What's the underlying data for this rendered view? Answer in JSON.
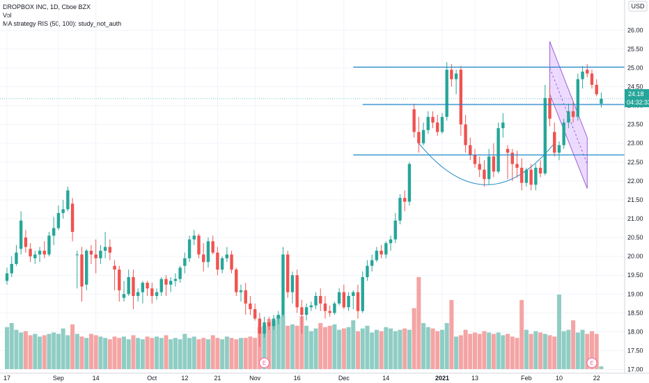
{
  "legend": {
    "symbol_line": "DROPBOX INC, 1D, Cboe BZX",
    "vol_line": "Vol",
    "strategy_line": "MA strategy RIS (50, 100): study_not_auth"
  },
  "currency_label": "USD",
  "price_label": "24.18",
  "countdown_label": "04:32:33",
  "earnings_marker": "E",
  "colors": {
    "up": "#26a69a",
    "down": "#ef5350",
    "up_vol": "#8fcdc4",
    "down_vol": "#f4a4a4",
    "hline": "#1e88c8",
    "channel_fill": "#cc99ff",
    "channel_stroke": "#9c5fd8"
  },
  "chart_data": {
    "type": "candlestick",
    "title": "DROPBOX INC, 1D, Cboe BZX",
    "ylim": [
      16.9,
      26.8
    ],
    "y_ticks": [
      "17.00",
      "17.50",
      "18.00",
      "18.50",
      "19.00",
      "19.50",
      "20.00",
      "20.50",
      "21.00",
      "21.50",
      "22.00",
      "22.50",
      "23.00",
      "23.50",
      "24.00",
      "24.50",
      "25.00",
      "25.50",
      "26.00"
    ],
    "x_ticks": [
      {
        "label": "17",
        "i": 0
      },
      {
        "label": "Sep",
        "i": 11
      },
      {
        "label": "14",
        "i": 19
      },
      {
        "label": "Oct",
        "i": 31
      },
      {
        "label": "12",
        "i": 38
      },
      {
        "label": "21",
        "i": 45
      },
      {
        "label": "Nov",
        "i": 53
      },
      {
        "label": "16",
        "i": 62
      },
      {
        "label": "Dec",
        "i": 72
      },
      {
        "label": "14",
        "i": 81
      },
      {
        "label": "2021",
        "i": 93
      },
      {
        "label": "13",
        "i": 100
      },
      {
        "label": "Feb",
        "i": 111
      },
      {
        "label": "10",
        "i": 118
      },
      {
        "label": "22",
        "i": 126
      }
    ],
    "candles": [
      [
        19.35,
        19.7,
        19.25,
        19.55
      ],
      [
        19.55,
        20.0,
        19.45,
        19.8
      ],
      [
        19.8,
        20.3,
        19.75,
        20.1
      ],
      [
        20.2,
        21.2,
        20.05,
        20.95
      ],
      [
        20.5,
        20.7,
        20.1,
        20.25
      ],
      [
        20.2,
        20.35,
        19.85,
        20.0
      ],
      [
        19.95,
        20.15,
        19.8,
        20.05
      ],
      [
        20.05,
        20.25,
        19.85,
        20.15
      ],
      [
        20.15,
        20.4,
        19.95,
        20.05
      ],
      [
        20.05,
        20.65,
        20.0,
        20.55
      ],
      [
        20.55,
        21.05,
        20.3,
        20.75
      ],
      [
        20.75,
        21.35,
        20.7,
        21.15
      ],
      [
        21.15,
        21.5,
        21.0,
        21.25
      ],
      [
        21.25,
        21.85,
        21.2,
        21.75
      ],
      [
        21.4,
        21.55,
        20.4,
        20.65
      ],
      [
        20.05,
        20.15,
        19.15,
        20.05
      ],
      [
        20.05,
        20.25,
        18.8,
        19.2
      ],
      [
        19.25,
        20.2,
        19.1,
        20.15
      ],
      [
        20.15,
        20.3,
        19.8,
        20.05
      ],
      [
        20.05,
        20.45,
        19.55,
        19.95
      ],
      [
        19.95,
        20.3,
        19.8,
        20.15
      ],
      [
        20.15,
        20.65,
        19.95,
        20.25
      ],
      [
        20.25,
        20.45,
        19.9,
        20.1
      ],
      [
        19.75,
        19.9,
        19.1,
        19.65
      ],
      [
        19.65,
        19.75,
        18.8,
        19.1
      ],
      [
        18.9,
        19.35,
        18.8,
        19.0
      ],
      [
        19.0,
        19.65,
        18.95,
        19.45
      ],
      [
        19.45,
        19.65,
        18.6,
        18.95
      ],
      [
        18.95,
        19.15,
        18.8,
        19.05
      ],
      [
        19.05,
        19.35,
        18.75,
        19.3
      ],
      [
        19.3,
        19.35,
        18.95,
        19.15
      ],
      [
        19.15,
        19.3,
        18.75,
        18.95
      ],
      [
        18.95,
        19.15,
        18.85,
        19.05
      ],
      [
        19.05,
        19.45,
        18.95,
        19.4
      ],
      [
        19.4,
        19.5,
        18.95,
        19.25
      ],
      [
        19.25,
        19.45,
        19.05,
        19.35
      ],
      [
        19.35,
        19.55,
        19.2,
        19.4
      ],
      [
        19.4,
        19.75,
        19.3,
        19.7
      ],
      [
        19.75,
        20.1,
        19.55,
        19.95
      ],
      [
        19.95,
        20.55,
        19.85,
        20.45
      ],
      [
        20.45,
        20.7,
        20.3,
        20.55
      ],
      [
        20.55,
        20.6,
        19.95,
        20.05
      ],
      [
        20.05,
        20.35,
        19.6,
        19.85
      ],
      [
        19.85,
        20.5,
        19.7,
        20.4
      ],
      [
        20.4,
        20.55,
        20.05,
        20.1
      ],
      [
        20.1,
        20.25,
        19.5,
        19.65
      ],
      [
        19.65,
        20.0,
        19.55,
        19.95
      ],
      [
        19.95,
        20.25,
        19.85,
        20.05
      ],
      [
        20.05,
        20.15,
        19.55,
        19.65
      ],
      [
        19.65,
        19.7,
        18.95,
        19.05
      ],
      [
        19.05,
        19.25,
        18.8,
        19.1
      ],
      [
        19.1,
        19.3,
        18.45,
        18.75
      ],
      [
        18.75,
        18.95,
        18.45,
        18.6
      ],
      [
        18.6,
        18.75,
        18.3,
        18.35
      ],
      [
        18.35,
        18.5,
        17.6,
        17.95
      ],
      [
        17.95,
        18.4,
        17.85,
        18.25
      ],
      [
        18.25,
        18.4,
        18.05,
        18.15
      ],
      [
        18.15,
        18.45,
        18.05,
        18.35
      ],
      [
        18.35,
        18.55,
        18.2,
        18.45
      ],
      [
        18.45,
        20.25,
        18.4,
        20.05
      ],
      [
        20.05,
        20.15,
        18.9,
        19.05
      ],
      [
        19.05,
        19.6,
        18.75,
        19.5
      ],
      [
        19.5,
        19.65,
        18.5,
        18.65
      ],
      [
        18.65,
        18.85,
        17.95,
        18.45
      ],
      [
        18.45,
        18.75,
        18.3,
        18.65
      ],
      [
        18.65,
        18.8,
        18.55,
        18.7
      ],
      [
        18.7,
        19.05,
        18.6,
        18.95
      ],
      [
        18.95,
        19.15,
        18.55,
        18.75
      ],
      [
        18.75,
        18.95,
        18.35,
        18.55
      ],
      [
        18.55,
        18.7,
        18.4,
        18.5
      ],
      [
        18.5,
        18.8,
        18.45,
        18.75
      ],
      [
        18.75,
        19.15,
        18.7,
        19.05
      ],
      [
        19.05,
        19.25,
        18.6,
        18.65
      ],
      [
        18.65,
        19.05,
        18.55,
        18.95
      ],
      [
        18.95,
        19.1,
        18.6,
        19.05
      ],
      [
        19.05,
        19.25,
        18.35,
        18.55
      ],
      [
        18.55,
        19.6,
        18.5,
        19.45
      ],
      [
        19.45,
        19.9,
        19.35,
        19.75
      ],
      [
        19.75,
        20.05,
        19.6,
        19.9
      ],
      [
        19.9,
        20.25,
        19.85,
        20.15
      ],
      [
        20.15,
        20.3,
        19.95,
        20.05
      ],
      [
        20.05,
        20.4,
        19.95,
        20.35
      ],
      [
        20.35,
        20.55,
        20.15,
        20.45
      ],
      [
        20.45,
        21.15,
        20.35,
        20.95
      ],
      [
        20.95,
        21.65,
        20.85,
        21.55
      ],
      [
        21.55,
        21.75,
        21.2,
        21.45
      ],
      [
        21.45,
        22.5,
        21.35,
        22.45
      ],
      [
        23.9,
        24.05,
        23.15,
        23.3
      ],
      [
        23.3,
        23.7,
        22.75,
        23.0
      ],
      [
        23.0,
        23.55,
        22.95,
        23.35
      ],
      [
        23.35,
        23.85,
        23.25,
        23.7
      ],
      [
        23.7,
        23.85,
        23.4,
        23.55
      ],
      [
        23.55,
        23.75,
        23.2,
        23.3
      ],
      [
        23.3,
        23.8,
        23.25,
        23.7
      ],
      [
        23.7,
        25.15,
        23.6,
        24.95
      ],
      [
        24.95,
        25.1,
        24.5,
        24.7
      ],
      [
        24.7,
        24.95,
        24.3,
        24.85
      ],
      [
        24.95,
        25.05,
        23.2,
        23.5
      ],
      [
        23.5,
        23.75,
        22.75,
        22.95
      ],
      [
        22.95,
        23.15,
        22.55,
        22.7
      ],
      [
        22.7,
        22.85,
        22.35,
        22.45
      ],
      [
        22.45,
        22.65,
        22.1,
        22.3
      ],
      [
        22.3,
        22.55,
        21.85,
        22.05
      ],
      [
        22.05,
        22.85,
        21.9,
        22.65
      ],
      [
        22.65,
        23.0,
        22.1,
        22.25
      ],
      [
        22.25,
        23.55,
        22.2,
        23.4
      ],
      [
        23.4,
        23.8,
        23.15,
        23.55
      ],
      [
        22.85,
        22.95,
        22.05,
        22.75
      ],
      [
        22.75,
        22.85,
        22.0,
        22.45
      ],
      [
        22.45,
        22.8,
        22.1,
        22.35
      ],
      [
        22.35,
        22.6,
        21.75,
        21.95
      ],
      [
        21.95,
        22.35,
        21.85,
        22.3
      ],
      [
        22.3,
        22.45,
        21.75,
        21.9
      ],
      [
        21.9,
        22.45,
        21.75,
        22.35
      ],
      [
        22.35,
        22.55,
        22.1,
        22.2
      ],
      [
        22.2,
        24.55,
        22.15,
        24.2
      ],
      [
        24.2,
        24.5,
        23.45,
        23.65
      ],
      [
        23.3,
        23.55,
        22.65,
        22.75
      ],
      [
        22.75,
        23.05,
        22.55,
        22.95
      ],
      [
        22.95,
        23.65,
        22.85,
        23.55
      ],
      [
        23.55,
        24.05,
        23.4,
        23.85
      ],
      [
        23.85,
        24.1,
        23.55,
        23.7
      ],
      [
        23.7,
        24.85,
        23.6,
        24.7
      ],
      [
        24.7,
        25.05,
        24.45,
        24.9
      ],
      [
        24.95,
        25.1,
        24.75,
        24.85
      ],
      [
        24.85,
        24.95,
        24.45,
        24.55
      ],
      [
        24.55,
        24.7,
        24.25,
        24.3
      ],
      [
        24.05,
        24.35,
        23.95,
        24.18
      ]
    ],
    "volume_millions": [
      3.1,
      3.4,
      2.9,
      2.7,
      2.8,
      2.5,
      2.6,
      2.4,
      2.5,
      2.6,
      2.7,
      2.6,
      3.0,
      2.5,
      3.3,
      2.6,
      2.4,
      2.3,
      2.6,
      2.5,
      2.4,
      2.3,
      2.2,
      2.4,
      2.3,
      2.4,
      2.2,
      2.5,
      2.3,
      2.2,
      2.4,
      2.3,
      2.4,
      2.3,
      2.5,
      2.2,
      2.3,
      2.2,
      2.6,
      2.3,
      2.4,
      2.2,
      2.3,
      2.2,
      2.5,
      2.3,
      2.2,
      2.4,
      2.3,
      2.2,
      2.3,
      2.3,
      2.4,
      2.3,
      3.1,
      3.2,
      3.7,
      3.6,
      3.9,
      4.0,
      3.2,
      3.3,
      3.2,
      3.9,
      3.2,
      2.8,
      3.0,
      3.4,
      3.1,
      3.2,
      3.3,
      2.9,
      3.0,
      3.1,
      3.6,
      2.8,
      3.0,
      3.2,
      2.7,
      2.9,
      2.8,
      3.1,
      3.0,
      2.8,
      2.9,
      3.0,
      2.9,
      4.5,
      6.8,
      3.4,
      3.1,
      3.0,
      2.8,
      2.9,
      3.4,
      5.1,
      2.4,
      2.5,
      2.9,
      2.6,
      2.7,
      2.6,
      2.8,
      2.7,
      2.6,
      2.7,
      2.5,
      2.6,
      2.4,
      2.3,
      5.1,
      2.9,
      2.6,
      2.8,
      2.7,
      2.6,
      2.5,
      2.4,
      5.5,
      2.8,
      2.9,
      3.6,
      2.7,
      2.9,
      2.6,
      2.8,
      2.6,
      0.2
    ],
    "horizontal_levels": [
      25.02,
      24.03,
      22.69
    ],
    "current_price": 24.18
  }
}
